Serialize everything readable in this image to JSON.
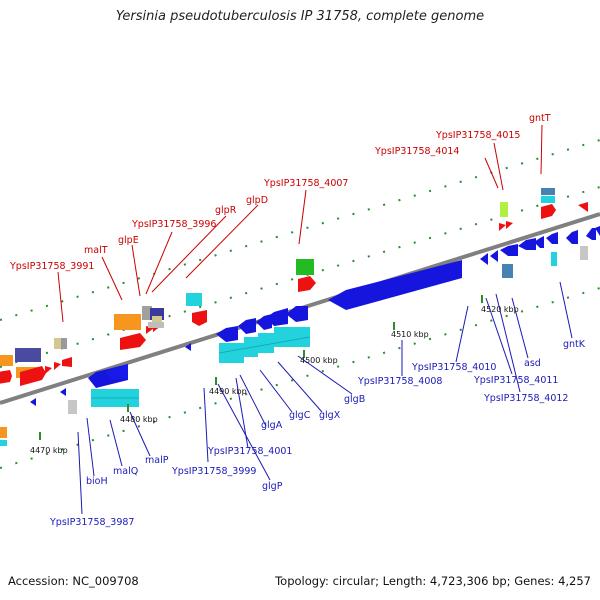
{
  "title": "Yersinia pseudotuberculosis IP 31758, complete genome",
  "footer": {
    "accession": "Accession: NC_009708",
    "summary": "Topology: circular; Length: 4,723,306 bp; Genes: 4,257"
  },
  "colors": {
    "forward_label": "#cc0000",
    "reverse_label": "#1a1ab8",
    "backbone": "#777777",
    "dots": "#2e8b2e"
  },
  "ticks": [
    "4470 kbp",
    "4480 kbp",
    "4490 kbp",
    "4500 kbp",
    "4510 kbp",
    "4520 kbp"
  ],
  "top_labels": [
    "YpsIP31758_3991",
    "malT",
    "glpE",
    "YpsIP31758_3996",
    "glpR",
    "glpD",
    "YpsIP31758_4007",
    "YpsIP31758_4014",
    "YpsIP31758_4015",
    "gntT"
  ],
  "bottom_labels": [
    "YpsIP31758_3987",
    "bioH",
    "malQ",
    "malP",
    "YpsIP31758_3999",
    "glgP",
    "YpsIP31758_4001",
    "glgA",
    "glgC",
    "glgX",
    "glgB",
    "YpsIP31758_4008",
    "YpsIP31758_4010",
    "YpsIP31758_4011",
    "YpsIP31758_4012",
    "asd",
    "gntK"
  ]
}
